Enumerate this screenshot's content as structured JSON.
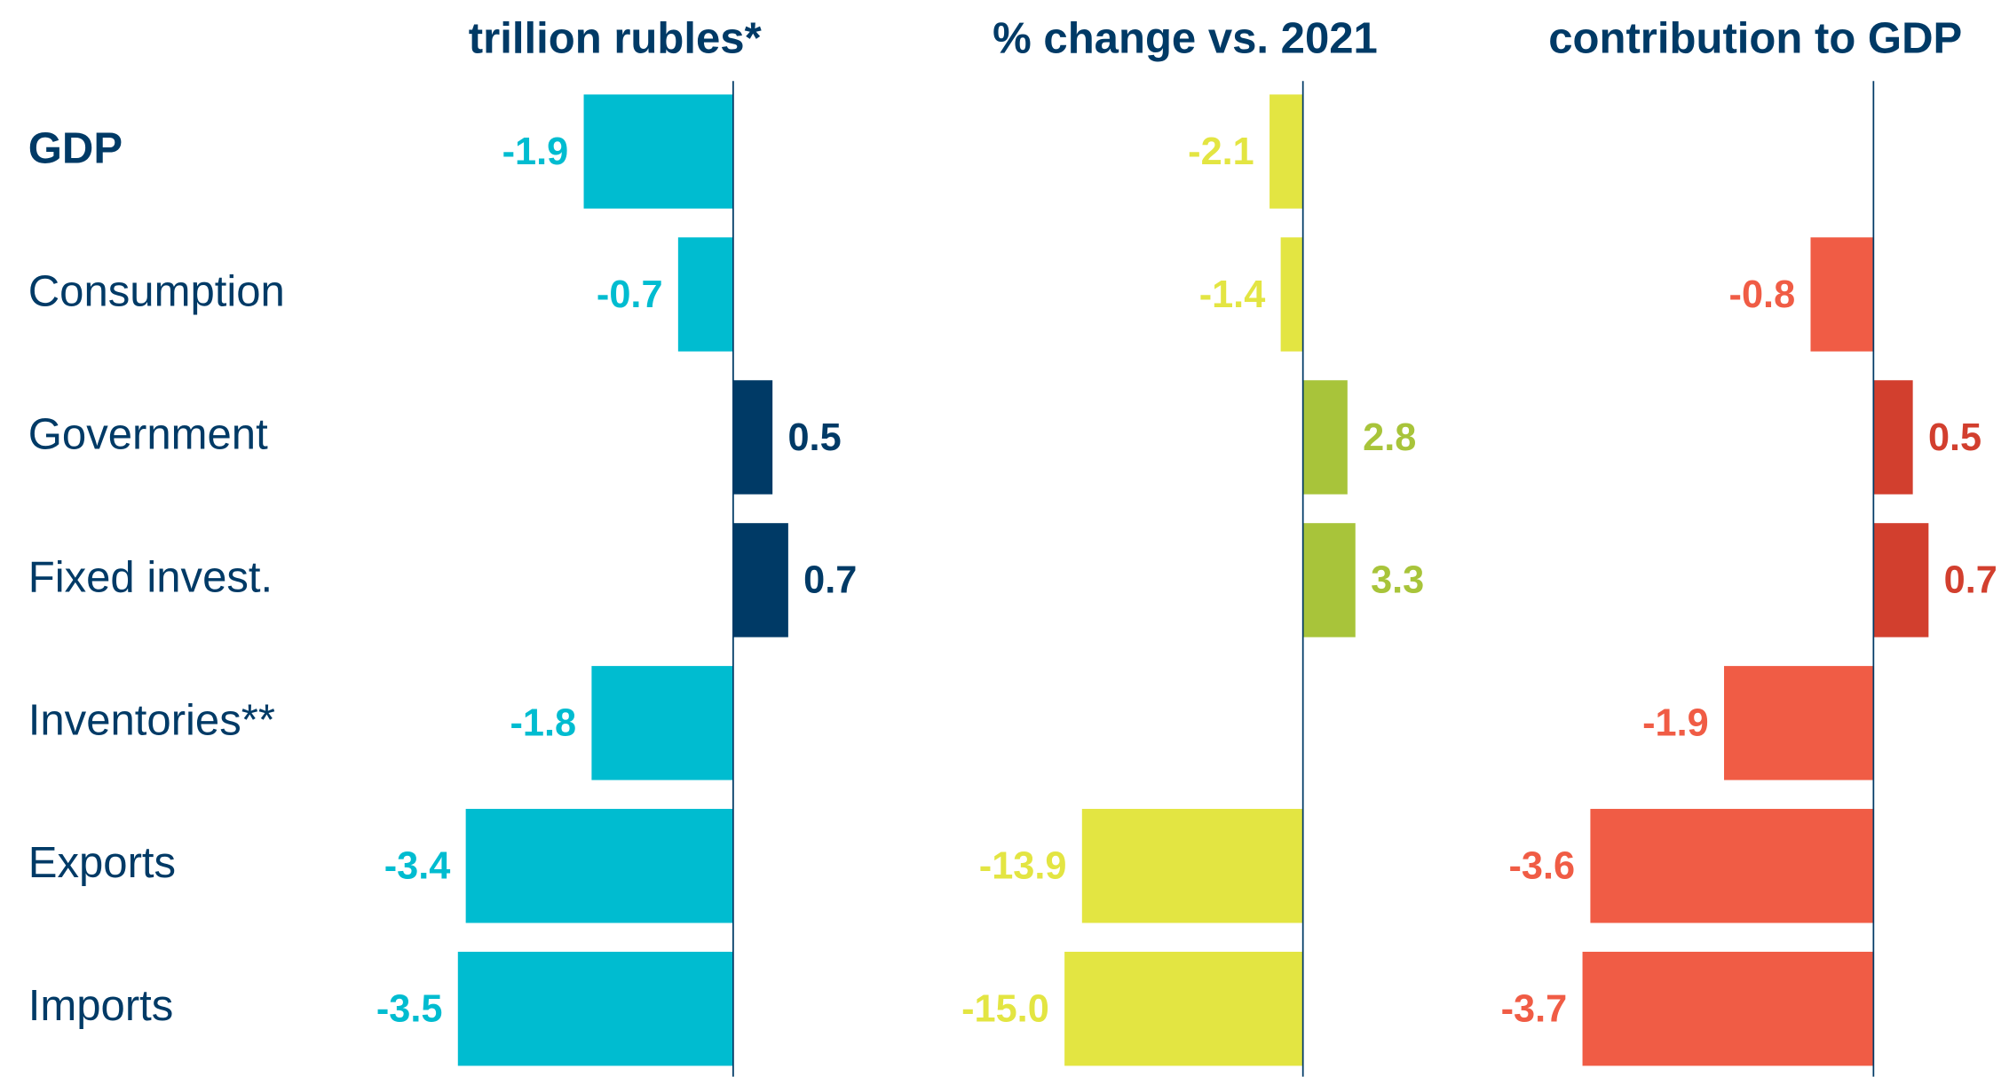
{
  "chart_data": {
    "type": "bar",
    "orientation": "horizontal",
    "categories": [
      "GDP",
      "Consumption",
      "Government",
      "Fixed invest.",
      "Inventories**",
      "Exports",
      "Imports"
    ],
    "series": [
      {
        "name": "trillion rubles*",
        "color": "#00BCD0",
        "positive_color": "#003A66",
        "values": [
          -1.9,
          -0.7,
          0.5,
          0.7,
          -1.8,
          -3.4,
          -3.5
        ],
        "xlim": [
          -4.5,
          2
        ]
      },
      {
        "name": "% change vs. 2021",
        "color": "#E3E542",
        "positive_color": "#A8C43A",
        "values": [
          -2.1,
          -1.4,
          2.8,
          3.3,
          null,
          -13.9,
          -15
        ],
        "value_labels": [
          "-2.1",
          "-1.4",
          "2.8",
          "3.3",
          null,
          "-13.9",
          "-15.0"
        ],
        "xlim": [
          -22,
          10
        ]
      },
      {
        "name": "contribution to GDP",
        "color": "#F05C45",
        "positive_color": "#D23F2E",
        "values": [
          null,
          -0.8,
          0.5,
          0.7,
          -1.9,
          -3.6,
          -3.7
        ],
        "xlim": [
          -4.5,
          2
        ]
      }
    ]
  }
}
